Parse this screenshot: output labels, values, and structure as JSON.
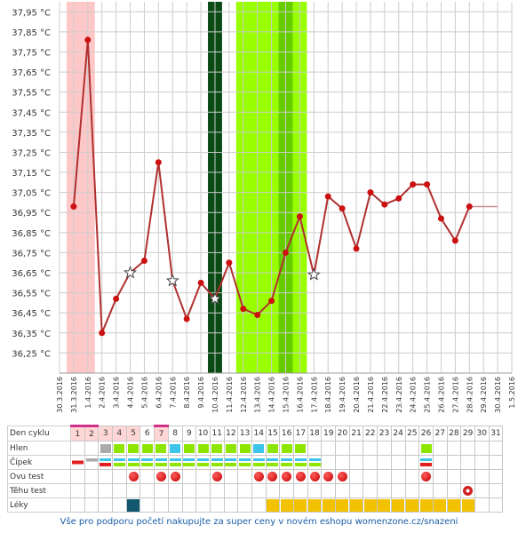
{
  "colors": {
    "line": "#b03030",
    "point": "#cc1111",
    "menses": "#ffc8c8",
    "fertile": "#99ff00",
    "fertile_dark": "#66cc00",
    "ovulation": "#0a4a14",
    "grid": "#cccccc",
    "footer": "#1a5ea8"
  },
  "chart_data": {
    "type": "line",
    "y_unit": "°C",
    "ylim": [
      36.15,
      38.0
    ],
    "yticks": [
      "37,95 °C",
      "37,85 °C",
      "37,75 °C",
      "37,65 °C",
      "37,55 °C",
      "37,45 °C",
      "37,35 °C",
      "37,25 °C",
      "37,15 °C",
      "37,05 °C",
      "36,95 °C",
      "36,85 °C",
      "36,75 °C",
      "36,65 °C",
      "36,55 °C",
      "36,45 °C",
      "36,35 °C",
      "36,25 °C"
    ],
    "ytick_values": [
      37.95,
      37.85,
      37.75,
      37.65,
      37.55,
      37.45,
      37.35,
      37.25,
      37.15,
      37.05,
      36.95,
      36.85,
      36.75,
      36.65,
      36.55,
      36.45,
      36.35,
      36.25
    ],
    "x_dates": [
      "30.3.2016",
      "31.3.2016",
      "1.4.2016",
      "2.4.2016",
      "3.4.2016",
      "4.4.2016",
      "5.4.2016",
      "6.4.2016",
      "7.4.2016",
      "8.4.2016",
      "9.4.2016",
      "10.4.2016",
      "11.4.2016",
      "12.4.2016",
      "13.4.2016",
      "14.4.2016",
      "15.4.2016",
      "16.4.2016",
      "17.4.2016",
      "18.4.2016",
      "19.4.2016",
      "20.4.2016",
      "21.4.2016",
      "22.4.2016",
      "23.4.2016",
      "24.4.2016",
      "25.4.2016",
      "26.4.2016",
      "27.4.2016",
      "28.4.2016",
      "29.4.2016",
      "30.4.2016",
      "1.5.2016"
    ],
    "series": [
      {
        "dates": [
          "31.3.2016",
          "1.4.2016",
          "2.4.2016",
          "3.4.2016",
          "4.4.2016",
          "5.4.2016",
          "6.4.2016",
          "7.4.2016",
          "8.4.2016",
          "9.4.2016",
          "10.4.2016",
          "11.4.2016",
          "12.4.2016",
          "13.4.2016",
          "14.4.2016",
          "15.4.2016",
          "16.4.2016",
          "17.4.2016",
          "18.4.2016",
          "19.4.2016",
          "20.4.2016",
          "21.4.2016",
          "22.4.2016",
          "23.4.2016",
          "24.4.2016",
          "25.4.2016",
          "26.4.2016",
          "27.4.2016",
          "28.4.2016"
        ],
        "values": [
          36.98,
          37.81,
          36.35,
          36.52,
          36.65,
          36.71,
          37.2,
          36.61,
          36.42,
          36.6,
          36.52,
          36.7,
          36.47,
          36.44,
          36.51,
          36.75,
          36.93,
          36.64,
          37.03,
          36.97,
          36.77,
          37.05,
          36.99,
          37.02,
          37.09,
          37.09,
          36.92,
          36.81,
          36.98
        ],
        "starred_dates": [
          "4.4.2016",
          "7.4.2016",
          "10.4.2016",
          "17.4.2016"
        ],
        "projection": {
          "from": "28.4.2016",
          "to": "30.4.2016",
          "value": 36.98
        }
      }
    ],
    "bands": [
      {
        "kind": "menses",
        "from": "31.3.2016",
        "to": "1.4.2016"
      },
      {
        "kind": "ovulation",
        "from": "10.4.2016",
        "to": "10.4.2016"
      },
      {
        "kind": "fertile",
        "from": "12.4.2016",
        "to": "16.4.2016"
      },
      {
        "kind": "fertile_dark",
        "from": "15.4.2016",
        "to": "15.4.2016"
      }
    ]
  },
  "table": {
    "rows": [
      {
        "key": "cycle",
        "label": "Den cyklu"
      },
      {
        "key": "mucus",
        "label": "Hlen"
      },
      {
        "key": "cervix",
        "label": "Čípek"
      },
      {
        "key": "ovu",
        "label": "Ovu test"
      },
      {
        "key": "preg",
        "label": "Těhu test"
      },
      {
        "key": "drugs",
        "label": "Léky"
      }
    ],
    "days": [
      "1",
      "2",
      "3",
      "4",
      "5",
      "6",
      "7",
      "8",
      "9",
      "10",
      "11",
      "12",
      "13",
      "14",
      "15",
      "16",
      "17",
      "18",
      "19",
      "20",
      "21",
      "22",
      "23",
      "24",
      "25",
      "26",
      "27",
      "28",
      "29",
      "30",
      "31"
    ],
    "menses_days": [
      1,
      2,
      3,
      4,
      5,
      7
    ],
    "menses_bar_days": [
      1,
      2,
      7
    ],
    "mucus": {
      "3": "gray",
      "4": "green",
      "5": "green",
      "6": "green",
      "7": "green",
      "8": "blue",
      "9": "green",
      "10": "green",
      "11": "green",
      "12": "green",
      "13": "green",
      "14": "blue",
      "15": "green",
      "16": "green",
      "17": "green",
      "26": "green"
    },
    "cervix": {
      "1": "red",
      "2": "gray",
      "3": "bluered",
      "4": "blue",
      "5": "blue",
      "6": "blue",
      "7": "blue",
      "8": "blue",
      "9": "blue",
      "10": "blue",
      "11": "blue",
      "12": "blue",
      "13": "blue",
      "14": "blue",
      "15": "blue",
      "16": "blue",
      "17": "blue",
      "18": "blue",
      "26": "bluered"
    },
    "ovu": [
      5,
      7,
      8,
      11,
      14,
      15,
      16,
      17,
      18,
      19,
      20,
      26
    ],
    "preg": [
      29
    ],
    "drugs_teal": [
      5
    ],
    "drugs_yellow": [
      15,
      16,
      17,
      18,
      19,
      20,
      21,
      22,
      23,
      24,
      25,
      26,
      27,
      28,
      29
    ]
  },
  "footer": "Vše pro podporu početí nakupujte za super ceny v novém eshopu womenzone.cz/snazeni"
}
